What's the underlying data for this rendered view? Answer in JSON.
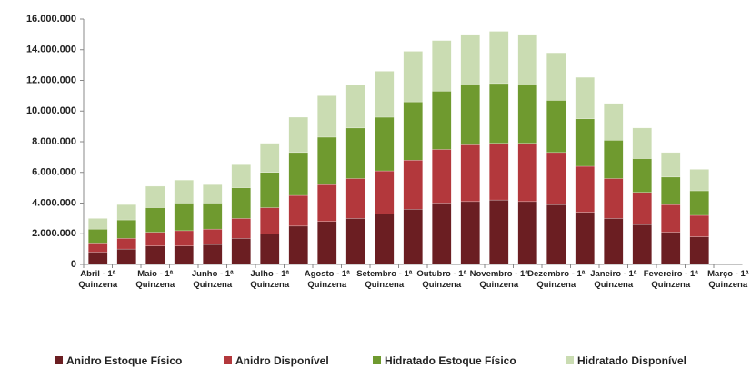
{
  "chart_data": {
    "type": "stacked_bar",
    "categories": [
      "Abril - 1ª Quinzena",
      null,
      "Maio - 1ª Quinzena",
      null,
      "Junho - 1ª Quinzena",
      null,
      "Julho - 1ª Quinzena",
      null,
      "Agosto - 1ª Quinzena",
      null,
      "Setembro - 1ª Quinzena",
      null,
      "Outubro - 1ª Quinzena",
      null,
      "Novembro - 1ª Quinzena",
      null,
      "Dezembro - 1ª Quinzena",
      null,
      "Janeiro - 1ª Quinzena",
      null,
      "Fevereiro - 1ª Quinzena",
      null,
      "Março - 1ª Quinzena"
    ],
    "series": [
      {
        "name": "Anidro Estoque Físico",
        "color": "#6b1e22",
        "values": [
          800000,
          1000000,
          1200000,
          1200000,
          1300000,
          1700000,
          2000000,
          2500000,
          2800000,
          3000000,
          3300000,
          3600000,
          4000000,
          4100000,
          4200000,
          4100000,
          3900000,
          3400000,
          3000000,
          2600000,
          2100000,
          1800000,
          null
        ]
      },
      {
        "name": "Anidro Disponível",
        "color": "#b3383c",
        "values": [
          600000,
          700000,
          900000,
          1000000,
          1000000,
          1300000,
          1700000,
          2000000,
          2400000,
          2600000,
          2800000,
          3200000,
          3500000,
          3700000,
          3700000,
          3800000,
          3400000,
          3000000,
          2600000,
          2100000,
          1800000,
          1400000,
          null
        ]
      },
      {
        "name": "Hidratado Estoque Físico",
        "color": "#6f9a2f",
        "values": [
          900000,
          1200000,
          1600000,
          1800000,
          1700000,
          2000000,
          2300000,
          2800000,
          3100000,
          3300000,
          3500000,
          3800000,
          3800000,
          3900000,
          3900000,
          3800000,
          3400000,
          3100000,
          2500000,
          2200000,
          1800000,
          1600000,
          null
        ]
      },
      {
        "name": "Hidratado Disponível",
        "color": "#cadcb2",
        "values": [
          700000,
          1000000,
          1400000,
          1500000,
          1200000,
          1500000,
          1900000,
          2300000,
          2700000,
          2800000,
          3000000,
          3300000,
          3300000,
          3300000,
          3400000,
          3300000,
          3100000,
          2700000,
          2400000,
          2000000,
          1600000,
          1400000,
          null
        ]
      }
    ],
    "ylim": [
      0,
      16000000
    ],
    "yticks": [
      0,
      {
        "value": 2000000,
        "label": "2.000.000"
      },
      {
        "value": 4000000,
        "label": "4.000.000"
      },
      {
        "value": 6000000,
        "label": "6.000.000"
      },
      {
        "value": 8000000,
        "label": "8.000.000"
      },
      {
        "value": 10000000,
        "label": "10.000.000"
      },
      {
        "value": 12000000,
        "label": "12.000.000"
      },
      {
        "value": 14000000,
        "label": "14.000.000"
      },
      {
        "value": 16000000,
        "label": "16.000.000"
      }
    ],
    "grid": false,
    "legend": "bottom"
  }
}
